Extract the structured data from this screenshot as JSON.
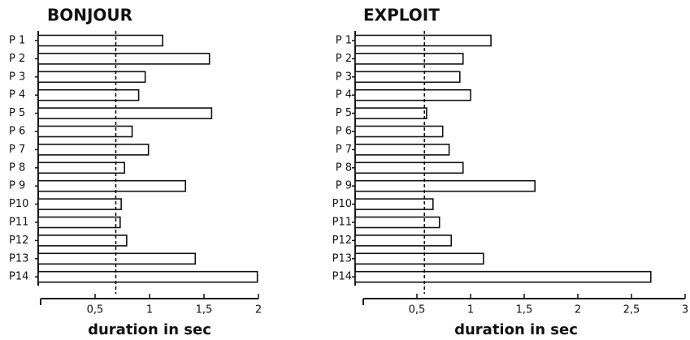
{
  "chart_data": [
    {
      "type": "bar",
      "orientation": "horizontal",
      "title": "BONJOUR",
      "x_label": "duration in sec",
      "categories": [
        "P 1",
        "P 2",
        "P 3",
        "P 4",
        "P 5",
        "P 6",
        "P 7",
        "P 8",
        "P 9",
        "P10",
        "P11",
        "P12",
        "P13",
        "P14"
      ],
      "values": [
        1.12,
        1.55,
        0.96,
        0.9,
        1.57,
        0.84,
        0.99,
        0.77,
        1.33,
        0.74,
        0.73,
        0.79,
        1.42,
        1.99
      ],
      "color": "#ffffff",
      "reference_line": 0.69,
      "xlim": [
        0,
        2
      ],
      "xticks": [
        {
          "value": 0.5,
          "label": "0,5"
        },
        1,
        {
          "value": 1.5,
          "label": "1,5"
        },
        2
      ]
    },
    {
      "type": "bar",
      "orientation": "horizontal",
      "title": "EXPLOIT",
      "x_label": "duration in sec",
      "categories": [
        "P 1",
        "P 2",
        "P 3",
        "P 4",
        "P 5",
        "P 6",
        "P 7",
        "P 8",
        "P 9",
        "P10",
        "P11",
        "P12",
        "P13",
        "P14"
      ],
      "values": [
        1.19,
        0.93,
        0.9,
        1.0,
        0.59,
        0.74,
        0.8,
        0.93,
        1.6,
        0.65,
        0.71,
        0.82,
        1.12,
        2.68
      ],
      "color": "#ffffff",
      "reference_line": 0.57,
      "xlim": [
        0,
        3
      ],
      "xticks": [
        {
          "value": 0.5,
          "label": "0,5"
        },
        1,
        {
          "value": 1.5,
          "label": "1,5"
        },
        2,
        {
          "value": 2.5,
          "label": "2,5"
        },
        3
      ]
    }
  ]
}
